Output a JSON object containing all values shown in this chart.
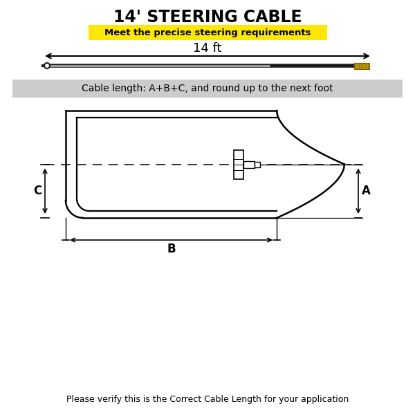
{
  "title": "14' STEERING CABLE",
  "subtitle": "Meet the precise steering requirements",
  "subtitle_bg": "#FFE800",
  "cable_label": "14 ft",
  "formula_label": "Cable length: A+B+C, and round up to the next foot",
  "formula_bg": "#CCCCCC",
  "dim_A": "A",
  "dim_B": "B",
  "dim_C": "C",
  "footer": "Please verify this is the Correct Cable Length for your application",
  "bg_color": "#FFFFFF",
  "line_color": "#000000",
  "cable_color": "#1A1A1A",
  "connector_color": "#B8960C"
}
